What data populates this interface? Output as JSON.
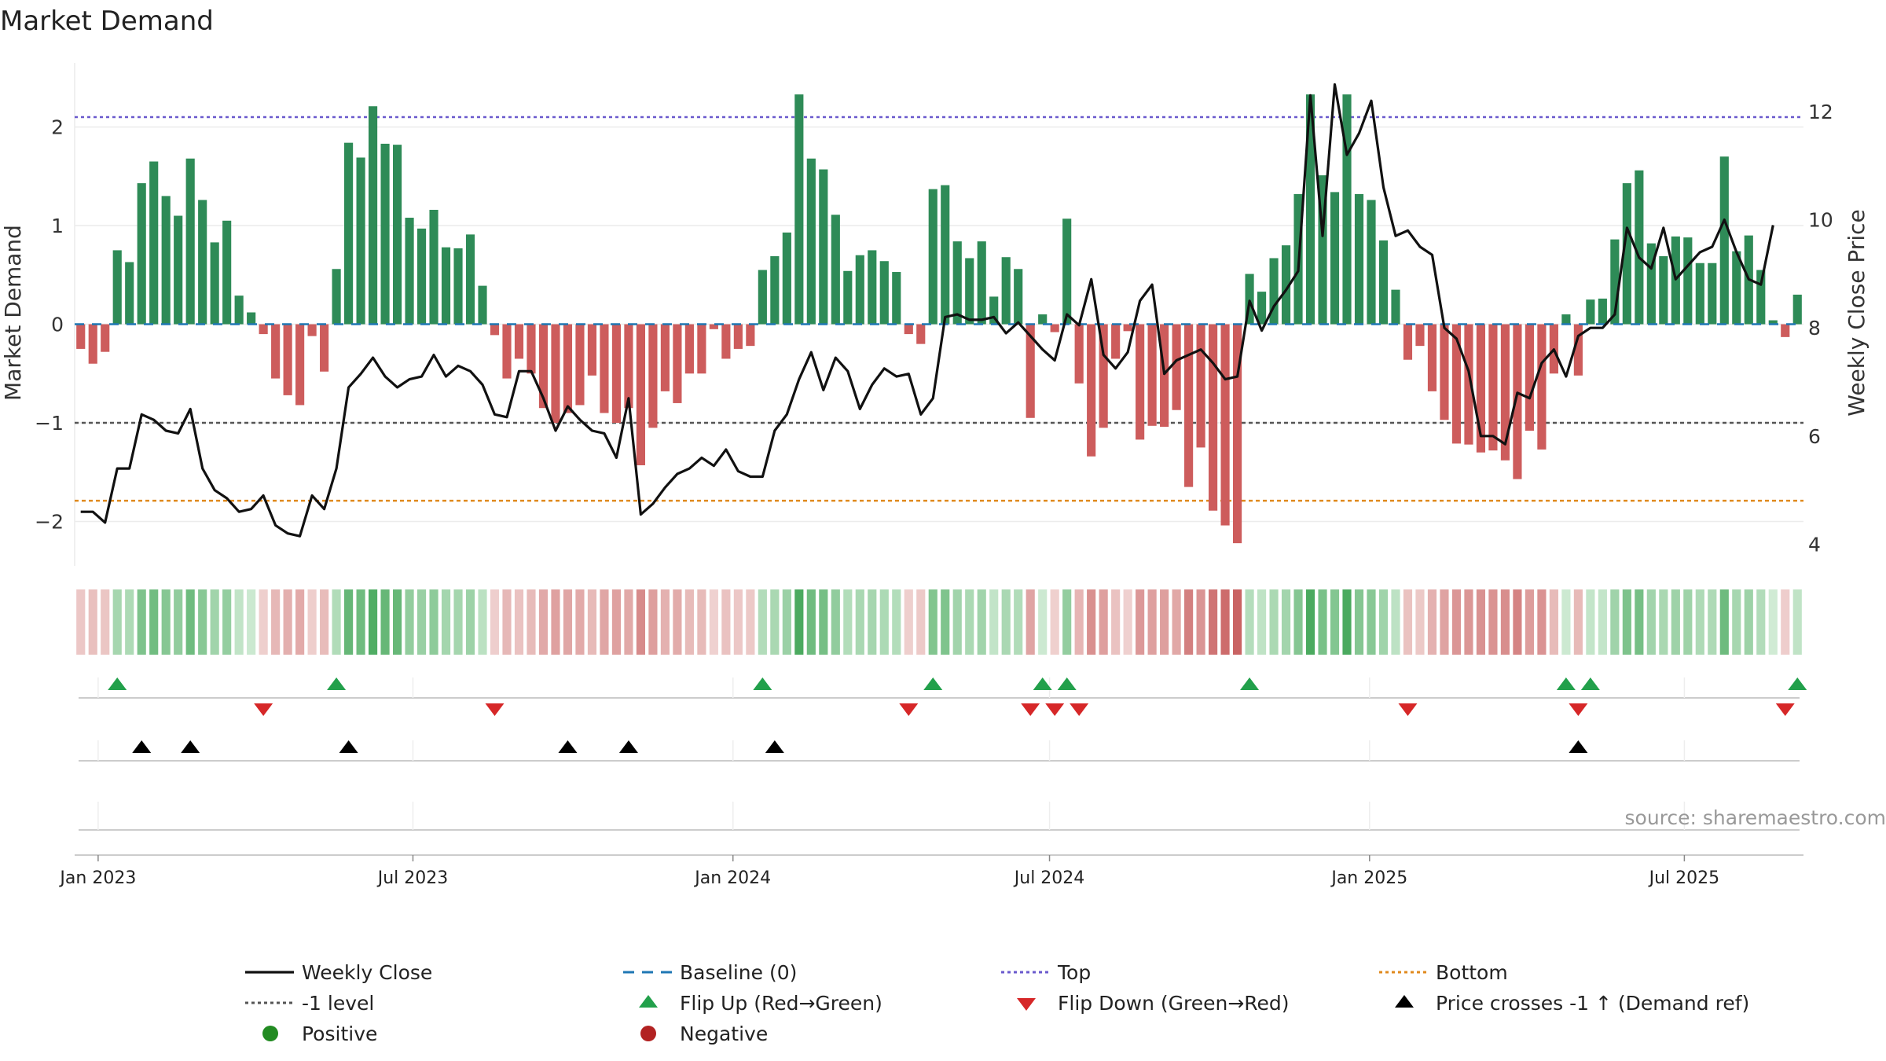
{
  "chart_data": {
    "type": "bar",
    "title": "Market Demand",
    "ylabel": "Market Demand",
    "y2label": "Weekly Close Price",
    "ylim": [
      -2.45,
      2.65
    ],
    "y2lim": [
      3.6,
      12.9
    ],
    "yticks": [
      2,
      1,
      0,
      -1,
      -2
    ],
    "ytick_labels": [
      "2",
      "1",
      "0",
      "−1",
      "−2"
    ],
    "y2ticks": [
      12,
      10,
      8,
      6,
      4
    ],
    "xticks": [
      "Jan 2023",
      "Jul 2023",
      "Jan 2024",
      "Jul 2024",
      "Jan 2025",
      "Jul 2025"
    ],
    "levels": {
      "top": 2.1,
      "bottom": -1.79,
      "minus_one": -1.0,
      "baseline": 0
    },
    "source": "source: sharemaestro.com",
    "colors": {
      "positive": "#2e8b57",
      "negative": "#cd5c5c",
      "price": "#111111",
      "top": "#6a5acd",
      "bottom": "#e08a1e",
      "minus_one": "#555555",
      "baseline": "#1f77b4",
      "flip_up": "#22a04b",
      "flip_down": "#d62728",
      "cross": "#000000",
      "pos_dot": "#228b22",
      "neg_dot": "#b22222"
    },
    "series": [
      {
        "name": "Market Demand",
        "values": [
          -0.25,
          -0.4,
          -0.28,
          0.75,
          0.63,
          1.43,
          1.65,
          1.3,
          1.1,
          1.68,
          1.26,
          0.83,
          1.05,
          0.29,
          0.12,
          -0.1,
          -0.55,
          -0.72,
          -0.82,
          -0.12,
          -0.48,
          0.56,
          1.84,
          1.69,
          2.21,
          1.83,
          1.82,
          1.08,
          0.97,
          1.16,
          0.78,
          0.77,
          0.91,
          0.39,
          -0.11,
          -0.55,
          -0.35,
          -0.5,
          -0.85,
          -1.0,
          -0.9,
          -0.82,
          -0.52,
          -0.9,
          -1.0,
          -0.85,
          -1.43,
          -1.05,
          -0.68,
          -0.8,
          -0.5,
          -0.5,
          -0.05,
          -0.35,
          -0.25,
          -0.22,
          0.55,
          0.69,
          0.93,
          2.33,
          1.68,
          1.57,
          1.11,
          0.54,
          0.7,
          0.75,
          0.64,
          0.53,
          -0.1,
          -0.2,
          1.37,
          1.41,
          0.84,
          0.67,
          0.84,
          0.28,
          0.68,
          0.56,
          -0.95,
          0.1,
          -0.08,
          1.07,
          -0.6,
          -1.34,
          -1.05,
          -0.35,
          -0.07,
          -1.17,
          -1.03,
          -1.04,
          -0.87,
          -1.65,
          -1.25,
          -1.89,
          -2.04,
          -2.22,
          0.51,
          0.33,
          0.67,
          0.8,
          1.32,
          2.33,
          1.51,
          1.34,
          2.33,
          1.32,
          1.26,
          0.85,
          0.35,
          -0.36,
          -0.22,
          -0.68,
          -0.97,
          -1.21,
          -1.22,
          -1.3,
          -1.28,
          -1.38,
          -1.57,
          -1.08,
          -1.27,
          -0.5,
          0.1,
          -0.52,
          0.25,
          0.26,
          0.86,
          1.43,
          1.56,
          0.82,
          0.69,
          0.89,
          0.88,
          0.62,
          0.62,
          1.7,
          0.74,
          0.9,
          0.55,
          0.04,
          -0.13,
          0.3
        ]
      },
      {
        "name": "Weekly Close",
        "axis": "right",
        "values": [
          4.6,
          4.6,
          4.4,
          5.4,
          5.4,
          6.4,
          6.3,
          6.1,
          6.05,
          6.5,
          5.4,
          5.0,
          4.85,
          4.6,
          4.65,
          4.9,
          4.35,
          4.2,
          4.15,
          4.9,
          4.65,
          5.4,
          6.9,
          7.15,
          7.45,
          7.1,
          6.9,
          7.05,
          7.1,
          7.5,
          7.1,
          7.3,
          7.2,
          6.95,
          6.4,
          6.35,
          7.2,
          7.2,
          6.7,
          6.1,
          6.55,
          6.3,
          6.1,
          6.05,
          5.6,
          6.7,
          4.55,
          4.75,
          5.05,
          5.3,
          5.4,
          5.6,
          5.45,
          5.75,
          5.35,
          5.25,
          5.25,
          6.1,
          6.4,
          7.05,
          7.55,
          6.85,
          7.45,
          7.2,
          6.5,
          6.95,
          7.25,
          7.1,
          7.15,
          6.4,
          6.7,
          8.2,
          8.25,
          8.15,
          8.15,
          8.2,
          7.9,
          8.1,
          7.85,
          7.6,
          7.4,
          8.25,
          8.05,
          8.9,
          7.5,
          7.25,
          7.55,
          8.5,
          8.8,
          7.15,
          7.4,
          7.5,
          7.6,
          7.35,
          7.05,
          7.1,
          8.5,
          7.95,
          8.4,
          8.7,
          9.05,
          12.3,
          9.7,
          12.5,
          11.2,
          11.6,
          12.2,
          10.6,
          9.7,
          9.8,
          9.5,
          9.35,
          8.0,
          7.8,
          7.2,
          6.0,
          6.0,
          5.85,
          6.8,
          6.7,
          7.35,
          7.6,
          7.1,
          7.85,
          8.0,
          8.0,
          8.25,
          9.85,
          9.3,
          9.1,
          9.85,
          8.9,
          9.15,
          9.4,
          9.5,
          10.0,
          9.4,
          8.9,
          8.8,
          9.9
        ]
      }
    ],
    "legend": {
      "placement": "bottom",
      "entries": [
        {
          "label": "Weekly Close",
          "marker": "line"
        },
        {
          "label": "Baseline (0)",
          "marker": "dash"
        },
        {
          "label": "Top",
          "marker": "dot-line"
        },
        {
          "label": "Bottom",
          "marker": "dot-line"
        },
        {
          "label": "-1 level",
          "marker": "dot-line"
        },
        {
          "label": "Flip Up (Red→Green)",
          "marker": "triangle-up"
        },
        {
          "label": "Flip Down (Green→Red)",
          "marker": "triangle-down"
        },
        {
          "label": "Price crosses -1 ↑ (Demand ref)",
          "marker": "triangle-up"
        },
        {
          "label": "Positive",
          "marker": "circle"
        },
        {
          "label": "Negative",
          "marker": "circle"
        }
      ]
    }
  }
}
